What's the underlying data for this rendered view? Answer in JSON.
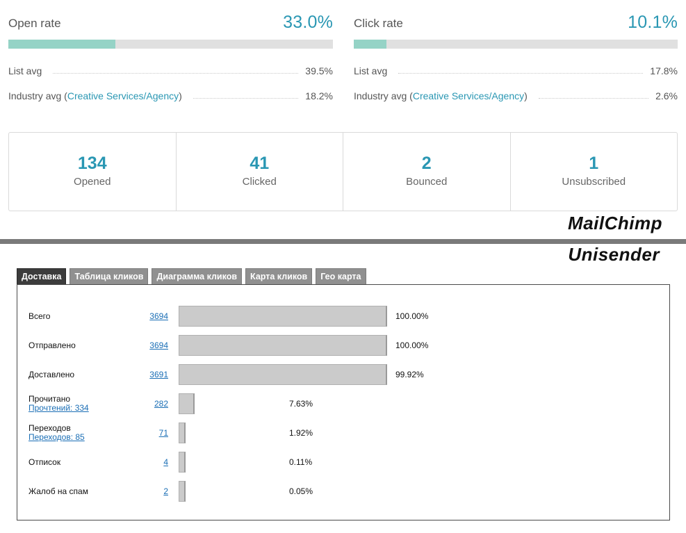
{
  "mailchimp": {
    "open_rate": {
      "label": "Open rate",
      "value": "33.0%",
      "fill_fraction": 0.33,
      "list_avg_label": "List avg",
      "list_avg_value": "39.5%",
      "industry_prefix": "Industry avg (",
      "industry_link": "Creative Services/Agency",
      "industry_suffix": ")",
      "industry_value": "18.2%"
    },
    "click_rate": {
      "label": "Click rate",
      "value": "10.1%",
      "fill_fraction": 0.101,
      "list_avg_label": "List avg",
      "list_avg_value": "17.8%",
      "industry_prefix": "Industry avg (",
      "industry_link": "Creative Services/Agency",
      "industry_suffix": ")",
      "industry_value": "2.6%"
    },
    "stats": [
      {
        "value": "134",
        "label": "Opened"
      },
      {
        "value": "41",
        "label": "Clicked"
      },
      {
        "value": "2",
        "label": "Bounced"
      },
      {
        "value": "1",
        "label": "Unsubscribed"
      }
    ],
    "brand": "MailChimp"
  },
  "unisender": {
    "brand": "Unisender",
    "tabs": [
      "Доставка",
      "Таблица кликов",
      "Диаграмма кликов",
      "Карта кликов",
      "Гео карта"
    ],
    "active_tab": 0,
    "rows": [
      {
        "label": "Всего",
        "sub": "",
        "count": "3694",
        "percent": "100.00%",
        "fraction": 1.0
      },
      {
        "label": "Отправлено",
        "sub": "",
        "count": "3694",
        "percent": "100.00%",
        "fraction": 1.0
      },
      {
        "label": "Доставлено",
        "sub": "",
        "count": "3691",
        "percent": "99.92%",
        "fraction": 0.9992
      },
      {
        "label": "Прочитано",
        "sub": "Прочтений: 334",
        "count": "282",
        "percent": "7.63%",
        "fraction": 0.0763
      },
      {
        "label": "Переходов",
        "sub": "Переходов: 85",
        "count": "71",
        "percent": "1.92%",
        "fraction": 0.0192
      },
      {
        "label": "Отписок",
        "sub": "",
        "count": "4",
        "percent": "0.11%",
        "fraction": 0.0011
      },
      {
        "label": "Жалоб на спам",
        "sub": "",
        "count": "2",
        "percent": "0.05%",
        "fraction": 0.0005
      }
    ]
  },
  "colors": {
    "accent": "#2a97b3",
    "bar_fill": "#95d3c6",
    "bar_track": "#e0e0e0",
    "unisender_bar": "#cbcbcb",
    "tab_active": "#3c3c3c",
    "tab_inactive": "#909090"
  }
}
